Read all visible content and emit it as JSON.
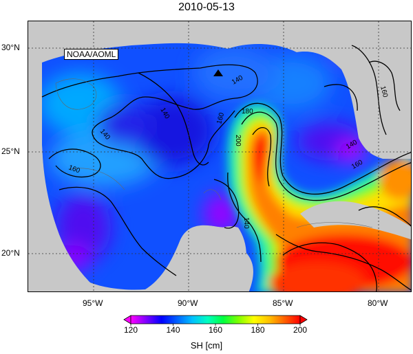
{
  "title": "2010-05-13",
  "credit": "NOAA/AOML",
  "map": {
    "variable": "SH",
    "units": "cm",
    "lon_ticks": [
      "95°W",
      "90°W",
      "85°W",
      "80°W"
    ],
    "lat_ticks": [
      "30°N",
      "25°N",
      "20°N"
    ],
    "contour_labels": [
      "140",
      "140",
      "140",
      "140",
      "160",
      "160",
      "160",
      "160",
      "180",
      "200",
      "140"
    ],
    "colors": {
      "land": "#c8c8c8",
      "grid": "#444444"
    }
  },
  "colorbar": {
    "title": "SH [cm]",
    "labels": [
      "120",
      "140",
      "160",
      "180",
      "200"
    ],
    "min": 120,
    "max": 200,
    "stops": [
      "#ff00ff",
      "#8000ff",
      "#0000ff",
      "#0060ff",
      "#00c0ff",
      "#00ffc0",
      "#00ff40",
      "#80ff00",
      "#ffff00",
      "#ffc000",
      "#ff6000",
      "#ff0000"
    ]
  }
}
